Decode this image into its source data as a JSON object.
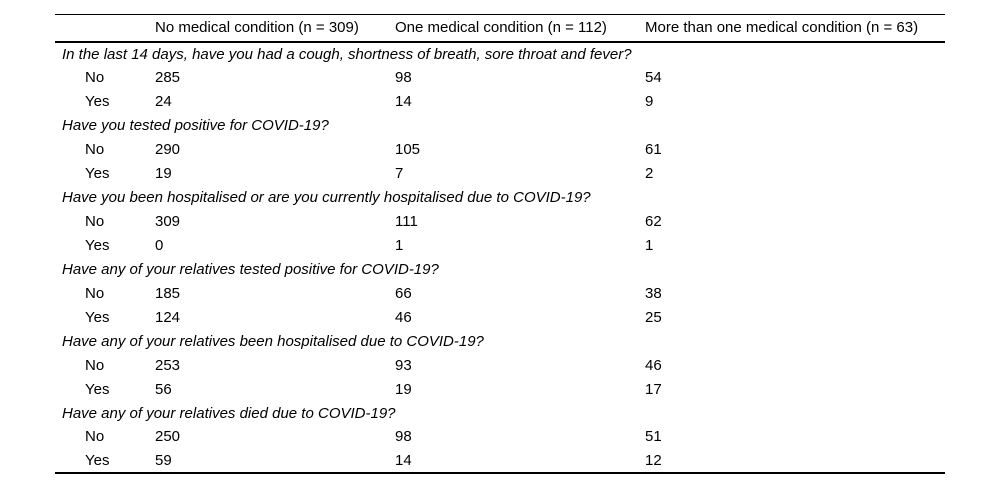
{
  "page": {
    "background_color": "#ffffff",
    "text_color": "#000000",
    "rule_color": "#000000"
  },
  "table": {
    "columns": [
      {
        "label": ""
      },
      {
        "label": "No medical condition (n = 309)"
      },
      {
        "label": "One medical condition (n = 112)"
      },
      {
        "label": "More than one medical condition (n = 63)"
      }
    ],
    "sections": [
      {
        "question": "In the last 14 days, have you had a cough, shortness of breath, sore throat and fever?",
        "rows": [
          {
            "label": "No",
            "values": [
              "285",
              "98",
              "54"
            ]
          },
          {
            "label": "Yes",
            "values": [
              "24",
              "14",
              "9"
            ]
          }
        ]
      },
      {
        "question": "Have you tested positive for COVID-19?",
        "rows": [
          {
            "label": "No",
            "values": [
              "290",
              "105",
              "61"
            ]
          },
          {
            "label": "Yes",
            "values": [
              "19",
              "7",
              "2"
            ]
          }
        ]
      },
      {
        "question": "Have you been hospitalised or are you currently hospitalised due to COVID-19?",
        "rows": [
          {
            "label": "No",
            "values": [
              "309",
              "111",
              "62"
            ]
          },
          {
            "label": "Yes",
            "values": [
              "0",
              "1",
              "1"
            ]
          }
        ]
      },
      {
        "question": "Have any of your relatives tested positive for COVID-19?",
        "rows": [
          {
            "label": "No",
            "values": [
              "185",
              "66",
              "38"
            ]
          },
          {
            "label": "Yes",
            "values": [
              "124",
              "46",
              "25"
            ]
          }
        ]
      },
      {
        "question": "Have any of your relatives been hospitalised due to COVID-19?",
        "rows": [
          {
            "label": "No",
            "values": [
              "253",
              "93",
              "46"
            ]
          },
          {
            "label": "Yes",
            "values": [
              "56",
              "19",
              "17"
            ]
          }
        ]
      },
      {
        "question": "Have any of your relatives died due to COVID-19?",
        "rows": [
          {
            "label": "No",
            "values": [
              "250",
              "98",
              "51"
            ]
          },
          {
            "label": "Yes",
            "values": [
              "59",
              "14",
              "12"
            ]
          }
        ]
      }
    ]
  }
}
